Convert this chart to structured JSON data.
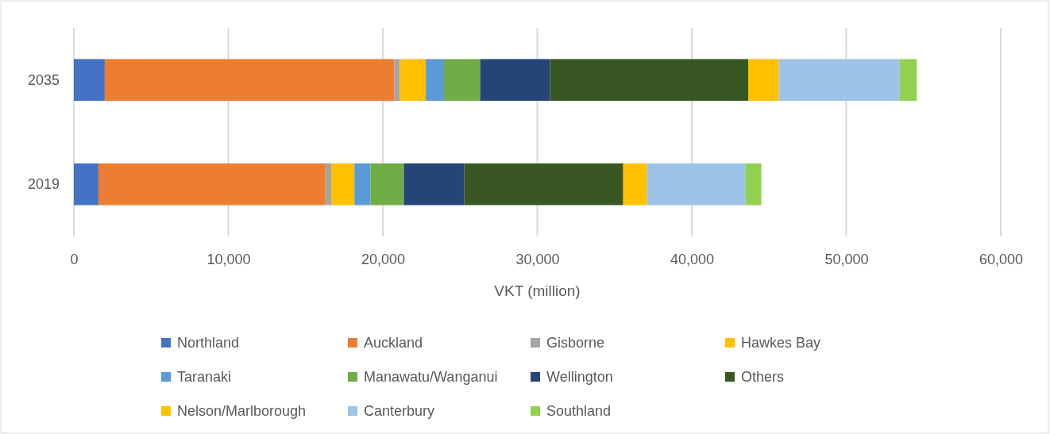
{
  "chart_data": {
    "type": "bar",
    "orientation": "horizontal",
    "stacked": true,
    "xlabel": "VKT (million)",
    "categories": [
      "2035",
      "2019"
    ],
    "xlim": [
      0,
      60000
    ],
    "xticks": [
      {
        "value": 0,
        "label": "0"
      },
      {
        "value": 10000,
        "label": "10,000"
      },
      {
        "value": 20000,
        "label": "20,000"
      },
      {
        "value": 30000,
        "label": "30,000"
      },
      {
        "value": 40000,
        "label": "40,000"
      },
      {
        "value": 50000,
        "label": "50,000"
      },
      {
        "value": 60000,
        "label": "60,000"
      }
    ],
    "grid": "x",
    "legend": "bottom",
    "series": [
      {
        "name": "Northland",
        "color": "#4472c4",
        "values": [
          2000,
          1590
        ]
      },
      {
        "name": "Auckland",
        "color": "#ed7d31",
        "values": [
          18750,
          14700
        ]
      },
      {
        "name": "Gisborne",
        "color": "#a5a5a5",
        "values": [
          350,
          370
        ]
      },
      {
        "name": "Hawkes Bay",
        "color": "#ffc000",
        "values": [
          1680,
          1500
        ]
      },
      {
        "name": "Taranaki",
        "color": "#5b9bd5",
        "values": [
          1180,
          1040
        ]
      },
      {
        "name": "Manawatu/Wanganui",
        "color": "#70ad47",
        "values": [
          2340,
          2160
        ]
      },
      {
        "name": "Wellington",
        "color": "#264478",
        "values": [
          4520,
          3900
        ]
      },
      {
        "name": "Others",
        "color": "#385723",
        "values": [
          12830,
          10300
        ]
      },
      {
        "name": "Nelson/Marlborough",
        "color": "#ffc000",
        "values": [
          1980,
          1540
        ]
      },
      {
        "name": "Canterbury",
        "color": "#9dc3e6",
        "values": [
          7830,
          6370
        ]
      },
      {
        "name": "Southland",
        "color": "#92d050",
        "values": [
          1110,
          1030
        ]
      }
    ]
  }
}
